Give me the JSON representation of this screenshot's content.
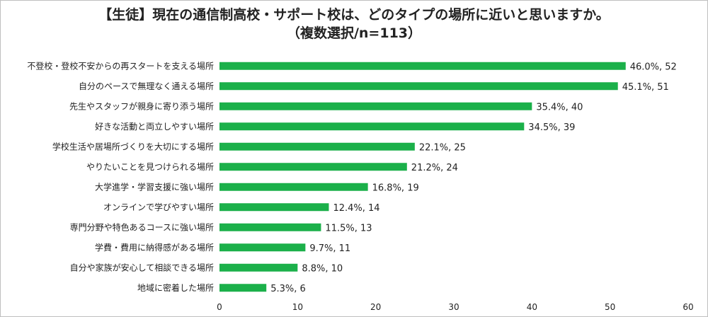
{
  "chart_data": {
    "type": "bar",
    "orientation": "horizontal",
    "title": "【生徒】現在の通信制高校・サポート校は、どのタイプの場所に近いと思いますか。",
    "subtitle": "（複数選択/n=113）",
    "bar_color": "#1bb04a",
    "xlim": [
      0,
      60
    ],
    "xticks": [
      "0",
      "10",
      "20",
      "30",
      "40",
      "50",
      "60"
    ],
    "grid": false,
    "categories": [
      "不登校・登校不安からの再スタートを支える場所",
      "自分のペースで無理なく通える場所",
      "先生やスタッフが親身に寄り添う場所",
      "好きな活動と両立しやすい場所",
      "学校生活や居場所づくりを大切にする場所",
      "やりたいことを見つけられる場所",
      "大学進学・学習支援に強い場所",
      "オンラインで学びやすい場所",
      "専門分野や特色あるコースに強い場所",
      "学費・費用に納得感がある場所",
      "自分や家族が安心して相談できる場所",
      "地域に密着した場所"
    ],
    "values": [
      52,
      51,
      40,
      39,
      25,
      24,
      19,
      14,
      13,
      11,
      10,
      6
    ],
    "data_labels": [
      "46.0%, 52",
      "45.1%, 51",
      "35.4%, 40",
      "34.5%, 39",
      "22.1%, 25",
      "21.2%, 24",
      "16.8%, 19",
      "12.4%, 14",
      "11.5%, 13",
      "9.7%, 11",
      "8.8%, 10",
      "5.3%, 6"
    ]
  }
}
